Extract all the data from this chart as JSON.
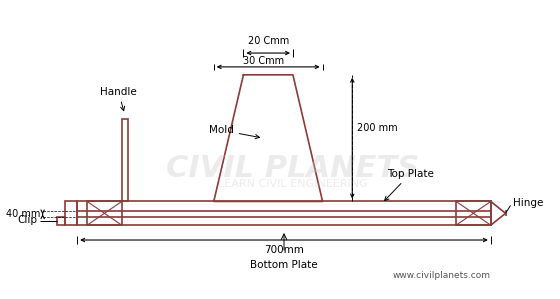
{
  "bg_color": "#ffffff",
  "draw_color": "#8B3A3A",
  "text_color": "#000000",
  "watermark_color": "#c8c8c8",
  "watermark_text": "CIVIL PLANETS",
  "watermark_sub": "LEARN CIVIL ENGINEERING",
  "website": "www.civilplanets.com",
  "title_fontsize": 8,
  "label_fontsize": 8,
  "annotations": {
    "20Cmm": "20 Cmm",
    "30Cmm": "30 Cmm",
    "200mm": "200 mm",
    "700mm": "700mm",
    "40mm": "40 mm",
    "Handle": "Handle",
    "Mold": "Mold",
    "Top_Plate": "Top Plate",
    "Hinge": "Hinge",
    "Clip": "Clip",
    "Bottom_Plate": "Bottom Plate"
  }
}
